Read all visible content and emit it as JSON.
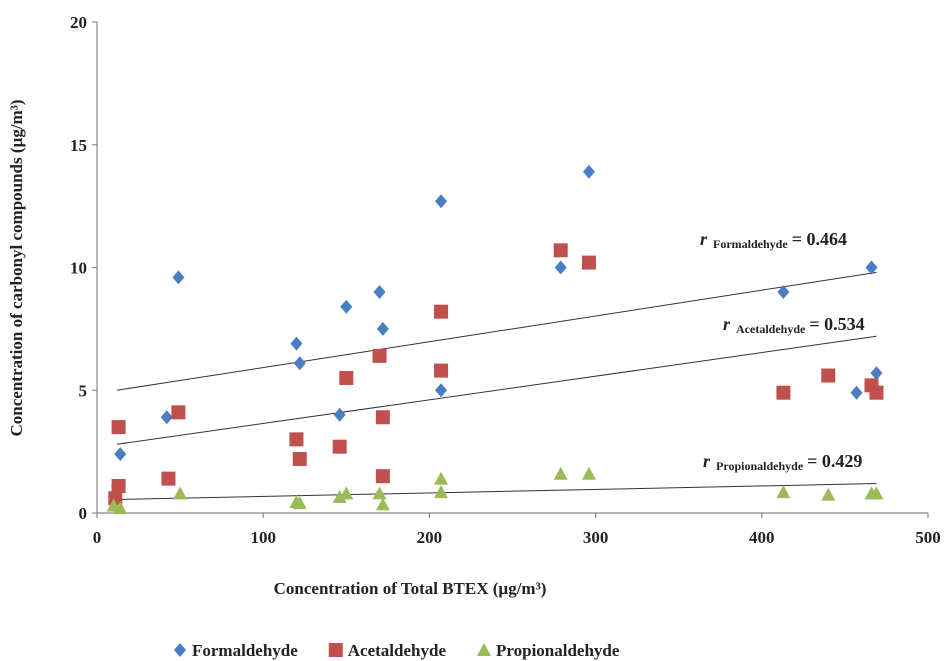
{
  "chart_data": {
    "type": "scatter",
    "x_label": "Concentration of Total BTEX (µg/m³)",
    "y_label": "Concentration of carbonyl compounds (µg/m³)",
    "xlim": [
      0,
      500
    ],
    "xticks": [
      0,
      100,
      200,
      300,
      400,
      500
    ],
    "ylim": [
      0,
      20
    ],
    "yticks": [
      0,
      5,
      10,
      15,
      20
    ],
    "legend": "bottom",
    "series": [
      {
        "name": "Formaldehyde",
        "color": "#4a7ec2",
        "marker": "diamond",
        "x": [
          12,
          14,
          42,
          49,
          120,
          122,
          150,
          146,
          170,
          172,
          207,
          207,
          279,
          296,
          413,
          457,
          466,
          469
        ],
        "values": [
          1.1,
          2.4,
          3.9,
          9.6,
          6.9,
          6.1,
          8.4,
          4.0,
          9.0,
          7.5,
          12.7,
          5.0,
          10.0,
          13.9,
          9.0,
          4.9,
          10.0,
          5.7
        ],
        "trendline": {
          "x": [
            12,
            469
          ],
          "values": [
            5.0,
            9.8
          ]
        }
      },
      {
        "name": "Acetaldehyde",
        "color": "#c0504d",
        "marker": "square",
        "x": [
          11,
          13,
          13,
          43,
          49,
          120,
          122,
          146,
          150,
          170,
          172,
          172,
          207,
          207,
          279,
          296,
          413,
          440,
          466,
          469
        ],
        "values": [
          0.6,
          1.1,
          3.5,
          1.4,
          4.1,
          3.0,
          2.2,
          2.7,
          5.5,
          6.4,
          3.9,
          1.5,
          8.2,
          5.8,
          10.7,
          10.2,
          4.9,
          5.6,
          5.2,
          4.9
        ],
        "trendline": {
          "x": [
            12,
            469
          ],
          "values": [
            2.8,
            7.2
          ]
        }
      },
      {
        "name": "Propionaldehyde",
        "color": "#9bbb59",
        "marker": "triangle",
        "x": [
          10,
          14,
          50,
          120,
          122,
          146,
          150,
          170,
          172,
          207,
          207,
          279,
          296,
          413,
          440,
          466,
          469
        ],
        "values": [
          0.3,
          0.2,
          0.8,
          0.45,
          0.4,
          0.65,
          0.8,
          0.8,
          0.35,
          0.85,
          1.4,
          1.6,
          1.6,
          0.85,
          0.75,
          0.8,
          0.8
        ],
        "trendline": {
          "x": [
            12,
            469
          ],
          "values": [
            0.55,
            1.2
          ]
        }
      }
    ],
    "annotations": [
      {
        "prefix": "r",
        "subscript": "Formaldehyde",
        "text": "= 0.464"
      },
      {
        "prefix": "r",
        "subscript": "Acetaldehyde",
        "text": "= 0.534"
      },
      {
        "prefix": "r",
        "subscript": "Propionaldehyde",
        "text": "= 0.429"
      }
    ]
  }
}
